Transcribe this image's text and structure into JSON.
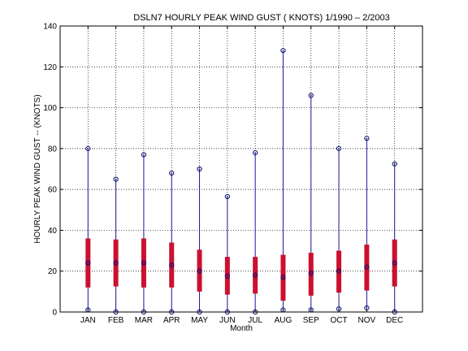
{
  "chart_data": {
    "type": "boxplot",
    "title": "DSLN7  HOURLY PEAK WIND GUST ( KNOTS) 1/1990 – 2/2003",
    "xlabel": "Month",
    "ylabel": "HOURLY PEAK WIND GUST -- (KNOTS)",
    "ylim": [
      0,
      140
    ],
    "yticks": [
      0,
      20,
      40,
      60,
      80,
      100,
      120,
      140
    ],
    "grid": true,
    "categories": [
      "JAN",
      "FEB",
      "MAR",
      "APR",
      "MAY",
      "JUN",
      "JUL",
      "AUG",
      "SEP",
      "OCT",
      "NOV",
      "DEC"
    ],
    "boxes": [
      {
        "min": 1,
        "q1": 12,
        "median": 24,
        "q3": 36,
        "max": 80
      },
      {
        "min": 0,
        "q1": 12.5,
        "median": 24,
        "q3": 35.5,
        "max": 65
      },
      {
        "min": 0,
        "q1": 12,
        "median": 24,
        "q3": 36,
        "max": 77
      },
      {
        "min": 0,
        "q1": 12,
        "median": 23,
        "q3": 34,
        "max": 68
      },
      {
        "min": 0,
        "q1": 10,
        "median": 20,
        "q3": 30.5,
        "max": 70
      },
      {
        "min": 0,
        "q1": 8.5,
        "median": 17.5,
        "q3": 27,
        "max": 56.5
      },
      {
        "min": 0,
        "q1": 9,
        "median": 18,
        "q3": 27,
        "max": 78
      },
      {
        "min": 1,
        "q1": 5.5,
        "median": 17,
        "q3": 28,
        "max": 128
      },
      {
        "min": 1,
        "q1": 8,
        "median": 19,
        "q3": 29,
        "max": 106
      },
      {
        "min": 1.5,
        "q1": 9.5,
        "median": 20,
        "q3": 30,
        "max": 80
      },
      {
        "min": 2,
        "q1": 10.5,
        "median": 22,
        "q3": 33,
        "max": 85
      },
      {
        "min": 0,
        "q1": 12.5,
        "median": 24,
        "q3": 35.5,
        "max": 72.5
      }
    ],
    "colors": {
      "whisker": "#1a1aa0",
      "box": "#cc1030",
      "marker": "#0a0a6a"
    }
  }
}
